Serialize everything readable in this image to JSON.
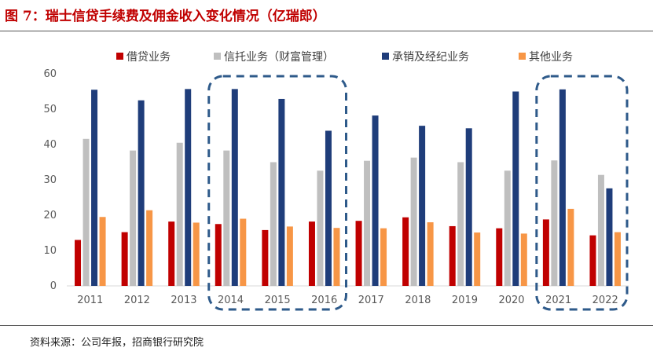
{
  "figure": {
    "title": "图 7：瑞士信贷手续费及佣金收入变化情况（亿瑞郎）",
    "source": "资料来源：公司年报，招商银行研究院"
  },
  "chart_data": {
    "type": "bar",
    "title": "",
    "xlabel": "",
    "ylabel": "",
    "ylim": [
      0,
      60
    ],
    "yticks": [
      0,
      10,
      20,
      30,
      40,
      50,
      60
    ],
    "grid": false,
    "legend_position": "top",
    "categories": [
      "2011",
      "2012",
      "2013",
      "2014",
      "2015",
      "2016",
      "2017",
      "2018",
      "2019",
      "2020",
      "2021",
      "2022"
    ],
    "series": [
      {
        "name": "借贷业务",
        "color": "#c00000",
        "values": [
          13.0,
          15.2,
          18.2,
          17.5,
          15.8,
          18.2,
          18.4,
          19.4,
          16.9,
          16.3,
          18.8,
          14.3
        ]
      },
      {
        "name": "信托业务（财富管理）",
        "color": "#bfbfbf",
        "values": [
          41.6,
          38.3,
          40.5,
          38.3,
          35.0,
          32.6,
          35.4,
          36.3,
          35.0,
          32.6,
          35.5,
          31.4
        ]
      },
      {
        "name": "承销及经纪业务",
        "color": "#1f3d7a",
        "values": [
          55.5,
          52.5,
          55.7,
          55.7,
          52.9,
          43.9,
          48.2,
          45.3,
          44.6,
          55.0,
          55.6,
          27.6
        ]
      },
      {
        "name": "其他业务",
        "color": "#f79646",
        "values": [
          19.5,
          21.4,
          17.9,
          19.0,
          16.8,
          16.4,
          16.3,
          18.0,
          15.1,
          14.8,
          21.8,
          15.2
        ]
      }
    ],
    "highlights": [
      {
        "categories": [
          "2014",
          "2015",
          "2016"
        ],
        "style": "dashed-rounded-box",
        "color": "#2e5a8a"
      },
      {
        "categories": [
          "2021",
          "2022"
        ],
        "style": "dashed-rounded-box",
        "color": "#2e5a8a"
      }
    ]
  }
}
